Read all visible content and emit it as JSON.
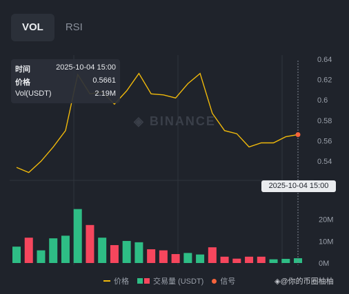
{
  "tabs": [
    {
      "label": "VOL",
      "active": true
    },
    {
      "label": "RSI",
      "active": false
    }
  ],
  "tooltip": {
    "time_label": "时间",
    "time_value": "2025-10-04 15:00",
    "price_label": "价格",
    "price_value": "0.5661",
    "vol_label": "Vol(USDT)",
    "vol_value": "2.19M"
  },
  "crosshair_date": "2025-10-04 15:00",
  "watermark": "BINANCE",
  "legend": {
    "price": "价格",
    "volume": "交易量 (USDT)",
    "signal": "信号"
  },
  "brand": "@你的币圈柚柚",
  "colors": {
    "price_line": "#f0b90b",
    "up": "#2ebd85",
    "down": "#f6465d",
    "signal": "#f6643c",
    "grid": "#2f343d"
  },
  "chart_data": [
    {
      "type": "line",
      "name": "price",
      "y_ticks": [
        "0.64",
        "0.62",
        "0.6",
        "0.58",
        "0.56",
        "0.54"
      ],
      "y_tick_values": [
        0.64,
        0.62,
        0.6,
        0.58,
        0.56,
        0.54
      ],
      "ylim": [
        0.528,
        0.644
      ],
      "values": [
        0.534,
        0.529,
        0.54,
        0.554,
        0.57,
        0.625,
        0.606,
        0.608,
        0.596,
        0.609,
        0.626,
        0.606,
        0.605,
        0.602,
        0.616,
        0.626,
        0.587,
        0.57,
        0.567,
        0.554,
        0.558,
        0.558,
        0.564,
        0.5661
      ],
      "signal_index": 23
    },
    {
      "type": "bar",
      "name": "volume",
      "y_ticks": [
        "20M",
        "10M",
        "0M"
      ],
      "y_tick_values": [
        20,
        10,
        0
      ],
      "ylim": [
        0,
        29
      ],
      "values": [
        7.5,
        11.6,
        5.8,
        11.3,
        12.5,
        24.7,
        17.4,
        11.6,
        8.2,
        10.1,
        9.5,
        6.3,
        5.8,
        4.1,
        4.6,
        3.9,
        7.2,
        2.9,
        2.0,
        2.9,
        2.9,
        1.7,
        1.9,
        2.19
      ],
      "direction": [
        "up",
        "down",
        "up",
        "up",
        "up",
        "up",
        "down",
        "up",
        "down",
        "up",
        "up",
        "down",
        "down",
        "down",
        "up",
        "up",
        "down",
        "down",
        "down",
        "down",
        "down",
        "up",
        "up",
        "up"
      ]
    }
  ]
}
